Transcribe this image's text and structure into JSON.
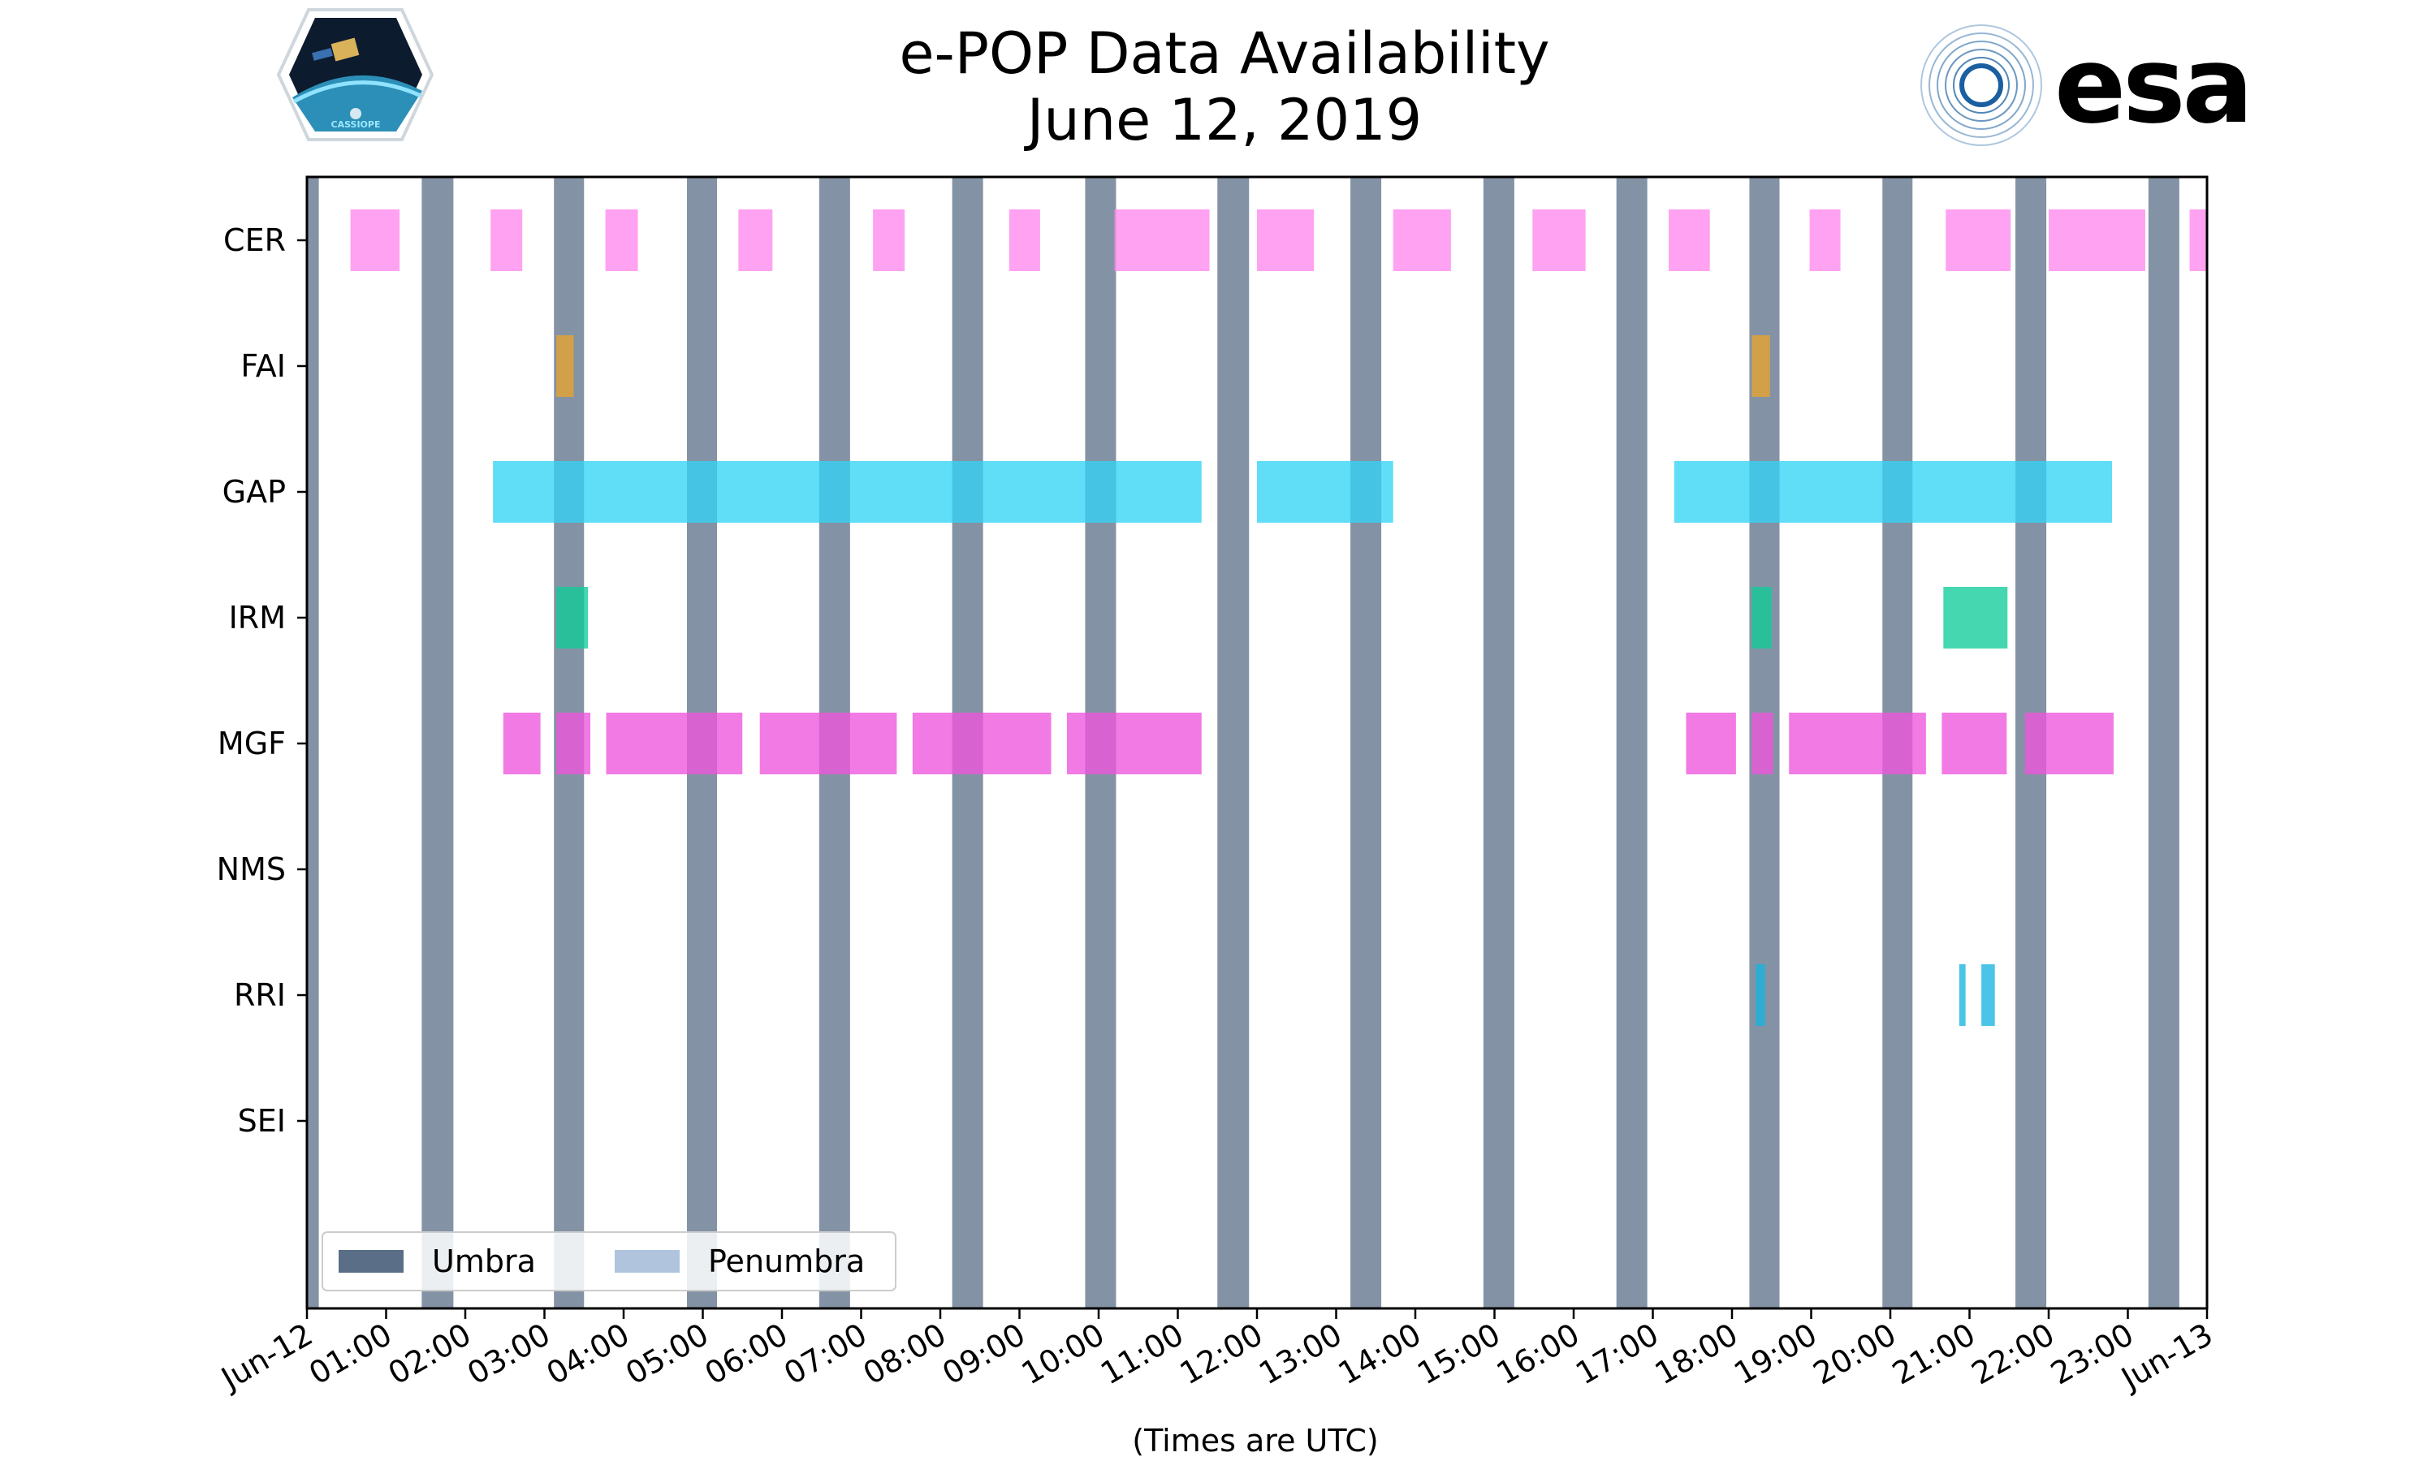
{
  "chart_data": {
    "type": "timeline",
    "title_lines": [
      "e-POP Data Availability",
      "June 12, 2019"
    ],
    "xlabel": "(Times are UTC)",
    "xlim_hours": [
      0,
      24
    ],
    "x_tick_labels": [
      "Jun-12",
      "01:00",
      "02:00",
      "03:00",
      "04:00",
      "05:00",
      "06:00",
      "07:00",
      "08:00",
      "09:00",
      "10:00",
      "11:00",
      "12:00",
      "13:00",
      "14:00",
      "15:00",
      "16:00",
      "17:00",
      "18:00",
      "19:00",
      "20:00",
      "21:00",
      "22:00",
      "23:00",
      "Jun-13"
    ],
    "instruments": [
      "CER",
      "FAI",
      "GAP",
      "IRM",
      "MGF",
      "NMS",
      "RRI",
      "SEI"
    ],
    "umbra_intervals_hours": [
      [
        0.0,
        0.15
      ],
      [
        1.45,
        1.85
      ],
      [
        3.12,
        3.5
      ],
      [
        4.8,
        5.18
      ],
      [
        6.47,
        6.86
      ],
      [
        8.15,
        8.54
      ],
      [
        9.83,
        10.22
      ],
      [
        11.5,
        11.9
      ],
      [
        13.18,
        13.57
      ],
      [
        14.86,
        15.25
      ],
      [
        16.54,
        16.93
      ],
      [
        18.22,
        18.6
      ],
      [
        19.9,
        20.28
      ],
      [
        21.58,
        21.97
      ],
      [
        23.26,
        23.65
      ]
    ],
    "series": [
      {
        "name": "CER",
        "color": "#ff88ee",
        "intervals_hours": [
          [
            0.55,
            1.17
          ],
          [
            2.32,
            2.72
          ],
          [
            3.77,
            4.18
          ],
          [
            5.45,
            5.88
          ],
          [
            7.15,
            7.55
          ],
          [
            8.87,
            9.26
          ],
          [
            10.2,
            11.4
          ],
          [
            12.0,
            12.72
          ],
          [
            13.72,
            14.45
          ],
          [
            15.48,
            16.15
          ],
          [
            17.2,
            17.72
          ],
          [
            18.98,
            19.37
          ],
          [
            20.7,
            21.52
          ],
          [
            22.0,
            23.22
          ],
          [
            23.78,
            24.0
          ]
        ]
      },
      {
        "name": "FAI",
        "color": "#e8a430",
        "intervals_hours": [
          [
            3.15,
            3.37
          ],
          [
            18.25,
            18.48
          ]
        ]
      },
      {
        "name": "GAP",
        "color": "#33d4f5",
        "intervals_hours": [
          [
            2.35,
            11.3
          ],
          [
            12.0,
            13.72
          ],
          [
            17.27,
            20.65
          ],
          [
            20.65,
            22.8
          ]
        ]
      },
      {
        "name": "IRM",
        "color": "#11cc99",
        "intervals_hours": [
          [
            3.15,
            3.55
          ],
          [
            18.25,
            18.5
          ],
          [
            20.67,
            21.48
          ]
        ]
      },
      {
        "name": "MGF",
        "color": "#ee55dd",
        "intervals_hours": [
          [
            2.48,
            2.95
          ],
          [
            3.15,
            3.58
          ],
          [
            3.78,
            5.5
          ],
          [
            5.72,
            7.45
          ],
          [
            7.65,
            9.4
          ],
          [
            9.6,
            11.3
          ],
          [
            17.42,
            18.05
          ],
          [
            18.25,
            18.52
          ],
          [
            18.72,
            20.45
          ],
          [
            20.65,
            21.47
          ],
          [
            21.7,
            22.82
          ]
        ]
      },
      {
        "name": "NMS",
        "color": "#cccccc",
        "intervals_hours": []
      },
      {
        "name": "RRI",
        "color": "#18b4e0",
        "intervals_hours": [
          [
            18.3,
            18.42
          ],
          [
            20.87,
            20.95
          ],
          [
            21.15,
            21.32
          ]
        ]
      },
      {
        "name": "SEI",
        "color": "#cccccc",
        "intervals_hours": []
      }
    ],
    "legend": {
      "placement": "lower-left",
      "entries": [
        {
          "label": "Umbra",
          "color": "#5a6f87"
        },
        {
          "label": "Penumbra",
          "color": "#b0c4de"
        }
      ]
    }
  },
  "logos": {
    "left_caption": "CASSIOPE",
    "right_text": "esa",
    "right_color": "#1a2b7a"
  }
}
